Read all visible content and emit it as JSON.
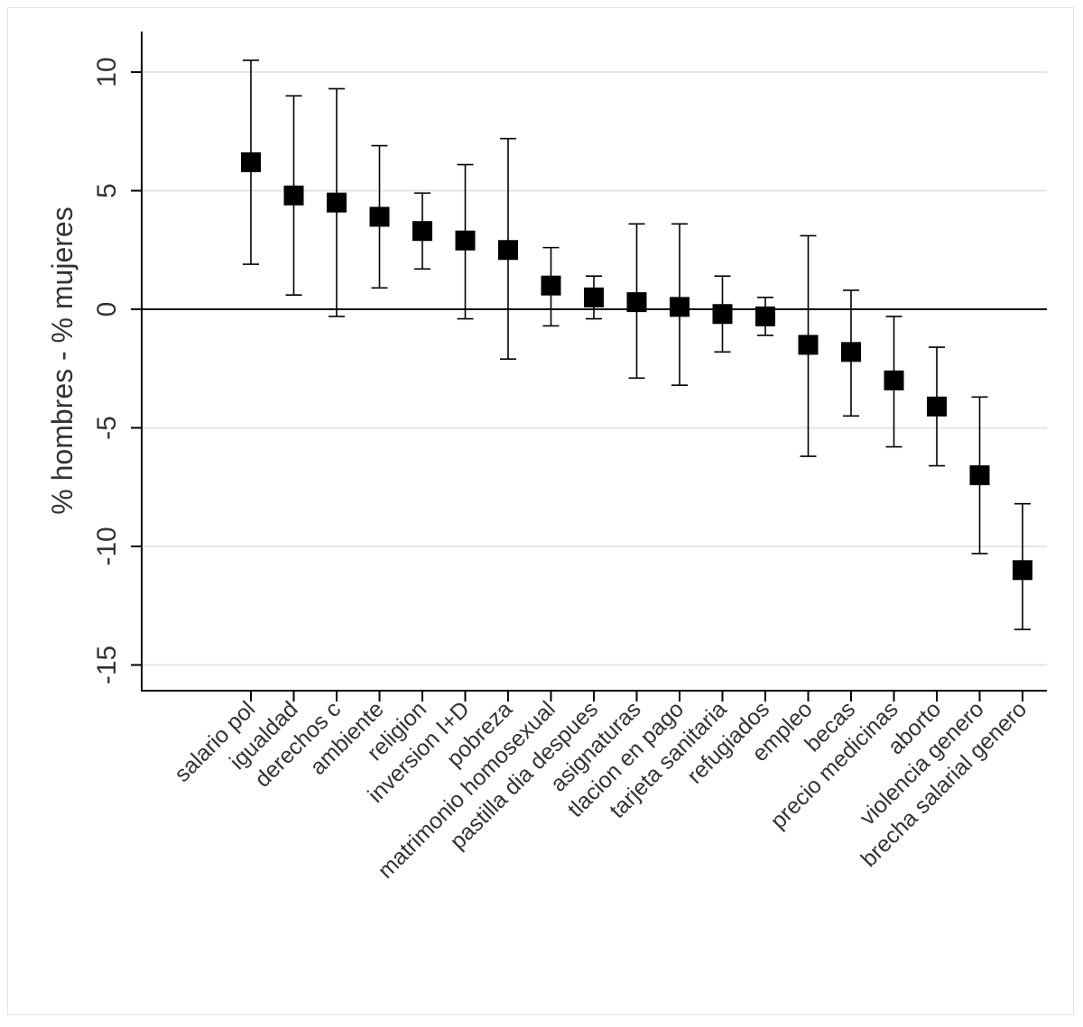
{
  "chart_data": {
    "type": "scatter",
    "subtype": "point-with-error-bars",
    "title": "",
    "xlabel": "",
    "ylabel": "% hombres - % mujeres",
    "ylim": [
      -16,
      12
    ],
    "yticks": [
      10,
      5,
      0,
      -5,
      -10,
      -15
    ],
    "reference_line": 0,
    "grid": true,
    "legend": "none",
    "marker_color": "#000000",
    "categories": [
      "salario pol",
      "igualdad",
      "derechos c",
      "ambiente",
      "religion",
      "inversion I+D",
      "pobreza",
      "matrimonio homosexual",
      "pastilla dia despues",
      "asignaturas",
      "tlacion en pago",
      "tarjeta sanitaria",
      "refugiados",
      "empleo",
      "becas",
      "precio medicinas",
      "aborto",
      "violencia genero",
      "brecha salarial genero"
    ],
    "values": [
      6.2,
      4.8,
      4.5,
      3.9,
      3.3,
      2.9,
      2.5,
      1.0,
      0.5,
      0.3,
      0.1,
      -0.2,
      -0.3,
      -1.5,
      -1.8,
      -3.0,
      -4.1,
      -7.0,
      -11.0
    ],
    "ci_upper": [
      10.5,
      9.0,
      9.3,
      6.9,
      4.9,
      6.1,
      7.2,
      2.6,
      1.4,
      3.6,
      3.6,
      1.4,
      0.5,
      3.1,
      0.8,
      -0.3,
      -1.6,
      -3.7,
      -8.2
    ],
    "ci_lower": [
      1.9,
      0.6,
      -0.3,
      0.9,
      1.7,
      -0.4,
      -2.1,
      -0.7,
      -0.4,
      -2.9,
      -3.2,
      -1.8,
      -1.1,
      -6.2,
      -4.5,
      -5.8,
      -6.6,
      -10.3,
      -13.5
    ]
  }
}
